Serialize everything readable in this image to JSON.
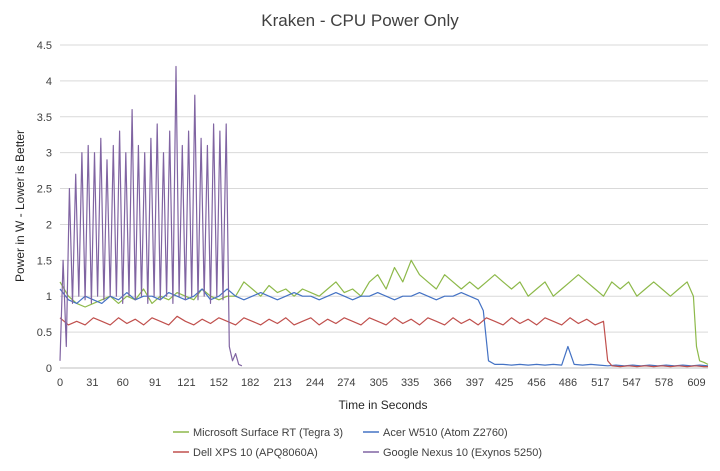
{
  "chart_data": {
    "type": "line",
    "title": "Kraken - CPU Power Only",
    "xlabel": "Time in Seconds",
    "ylabel": "Power in W - Lower is Better",
    "xlim": [
      0,
      620
    ],
    "ylim": [
      0,
      4.5
    ],
    "y_ticks": [
      "0",
      "0.5",
      "1",
      "1.5",
      "2",
      "2.5",
      "3",
      "3.5",
      "4",
      "4.5"
    ],
    "x_ticks": [
      0,
      31,
      60,
      91,
      121,
      152,
      182,
      213,
      244,
      274,
      305,
      335,
      366,
      397,
      425,
      456,
      486,
      517,
      547,
      578,
      609
    ],
    "grid": true,
    "legend_position": "bottom",
    "series": [
      {
        "name": "Microsoft Surface RT (Tegra 3)",
        "color": "#8DB94A",
        "x": [
          0,
          8,
          16,
          24,
          32,
          40,
          48,
          56,
          64,
          72,
          80,
          88,
          96,
          104,
          112,
          120,
          128,
          136,
          144,
          152,
          160,
          168,
          176,
          184,
          192,
          200,
          208,
          216,
          224,
          232,
          240,
          248,
          256,
          264,
          272,
          280,
          288,
          296,
          304,
          312,
          320,
          328,
          336,
          344,
          352,
          360,
          368,
          376,
          384,
          392,
          400,
          408,
          416,
          424,
          432,
          440,
          448,
          456,
          464,
          472,
          480,
          488,
          496,
          504,
          512,
          520,
          528,
          536,
          544,
          552,
          560,
          568,
          576,
          584,
          592,
          600,
          606,
          609,
          612,
          616,
          620
        ],
        "y": [
          1.2,
          1.0,
          0.9,
          0.85,
          0.9,
          0.95,
          1.0,
          0.9,
          1.0,
          0.95,
          1.1,
          0.9,
          1.0,
          0.95,
          1.05,
          1.0,
          0.95,
          1.1,
          1.0,
          0.95,
          1.0,
          1.0,
          1.2,
          1.1,
          1.0,
          1.15,
          1.05,
          1.1,
          1.0,
          1.1,
          1.05,
          1.0,
          1.1,
          1.2,
          1.05,
          1.1,
          1.0,
          1.2,
          1.3,
          1.1,
          1.4,
          1.2,
          1.5,
          1.3,
          1.2,
          1.1,
          1.3,
          1.2,
          1.1,
          1.2,
          1.1,
          1.2,
          1.3,
          1.2,
          1.1,
          1.2,
          1.0,
          1.1,
          1.2,
          1.0,
          1.1,
          1.2,
          1.3,
          1.2,
          1.1,
          1.0,
          1.2,
          1.1,
          1.2,
          1.0,
          1.1,
          1.2,
          1.1,
          1.0,
          1.1,
          1.2,
          1.0,
          0.3,
          0.1,
          0.08,
          0.05
        ]
      },
      {
        "name": "Acer W510 (Atom Z2760)",
        "color": "#4472C4",
        "x": [
          0,
          8,
          16,
          24,
          32,
          40,
          48,
          56,
          64,
          72,
          80,
          88,
          96,
          104,
          112,
          120,
          128,
          136,
          144,
          152,
          160,
          168,
          176,
          184,
          192,
          200,
          208,
          216,
          224,
          232,
          240,
          248,
          256,
          264,
          272,
          280,
          288,
          296,
          304,
          312,
          320,
          328,
          336,
          344,
          352,
          360,
          368,
          376,
          384,
          392,
          400,
          405,
          410,
          416,
          424,
          432,
          440,
          448,
          456,
          464,
          472,
          480,
          486,
          492,
          500,
          508,
          516,
          524,
          532,
          540,
          548,
          556,
          564,
          572,
          580,
          588,
          596,
          604,
          612,
          620
        ],
        "y": [
          1.1,
          0.95,
          0.9,
          1.0,
          0.95,
          0.9,
          1.0,
          0.95,
          1.05,
          0.95,
          1.0,
          1.0,
          0.95,
          1.05,
          1.0,
          0.95,
          1.0,
          1.1,
          0.95,
          1.0,
          1.1,
          1.0,
          0.95,
          1.0,
          1.05,
          1.0,
          0.95,
          1.0,
          1.05,
          1.0,
          1.0,
          0.95,
          1.0,
          1.05,
          1.0,
          0.95,
          1.0,
          1.0,
          1.05,
          1.0,
          0.95,
          1.0,
          1.0,
          1.05,
          1.0,
          0.95,
          1.0,
          1.0,
          1.05,
          1.0,
          0.95,
          0.8,
          0.1,
          0.05,
          0.05,
          0.04,
          0.05,
          0.04,
          0.05,
          0.04,
          0.05,
          0.04,
          0.3,
          0.05,
          0.04,
          0.05,
          0.04,
          0.03,
          0.04,
          0.03,
          0.04,
          0.03,
          0.04,
          0.03,
          0.04,
          0.03,
          0.04,
          0.03,
          0.04,
          0.03
        ]
      },
      {
        "name": "Dell XPS 10 (APQ8060A)",
        "color": "#C0504D",
        "x": [
          0,
          8,
          16,
          24,
          32,
          40,
          48,
          56,
          64,
          72,
          80,
          88,
          96,
          104,
          112,
          120,
          128,
          136,
          144,
          152,
          160,
          168,
          176,
          184,
          192,
          200,
          208,
          216,
          224,
          232,
          240,
          248,
          256,
          264,
          272,
          280,
          288,
          296,
          304,
          312,
          320,
          328,
          336,
          344,
          352,
          360,
          368,
          376,
          384,
          392,
          400,
          408,
          416,
          424,
          432,
          440,
          448,
          456,
          464,
          472,
          480,
          488,
          496,
          504,
          512,
          520,
          524,
          528,
          536,
          544,
          552,
          560,
          568,
          576,
          584,
          592,
          600,
          608,
          616,
          620
        ],
        "y": [
          0.7,
          0.6,
          0.65,
          0.6,
          0.7,
          0.65,
          0.6,
          0.7,
          0.62,
          0.68,
          0.6,
          0.7,
          0.65,
          0.6,
          0.72,
          0.65,
          0.6,
          0.68,
          0.62,
          0.7,
          0.65,
          0.6,
          0.7,
          0.65,
          0.6,
          0.68,
          0.62,
          0.7,
          0.6,
          0.65,
          0.7,
          0.6,
          0.68,
          0.62,
          0.7,
          0.65,
          0.6,
          0.7,
          0.65,
          0.6,
          0.7,
          0.62,
          0.68,
          0.6,
          0.7,
          0.65,
          0.6,
          0.7,
          0.62,
          0.68,
          0.6,
          0.7,
          0.65,
          0.6,
          0.7,
          0.62,
          0.68,
          0.6,
          0.7,
          0.65,
          0.6,
          0.7,
          0.62,
          0.68,
          0.6,
          0.65,
          0.1,
          0.03,
          0.02,
          0.03,
          0.02,
          0.03,
          0.02,
          0.03,
          0.02,
          0.03,
          0.02,
          0.03,
          0.02,
          0.02
        ]
      },
      {
        "name": "Google Nexus 10 (Exynos 5250)",
        "color": "#8064A2",
        "x": [
          0,
          3,
          6,
          9,
          12,
          15,
          18,
          21,
          24,
          27,
          30,
          33,
          36,
          39,
          42,
          45,
          48,
          51,
          54,
          57,
          60,
          63,
          66,
          69,
          72,
          75,
          78,
          81,
          84,
          87,
          90,
          93,
          96,
          99,
          102,
          105,
          108,
          111,
          114,
          117,
          120,
          123,
          126,
          129,
          132,
          135,
          138,
          141,
          144,
          147,
          150,
          153,
          156,
          159,
          162,
          165,
          168,
          171,
          174
        ],
        "y": [
          0.1,
          1.5,
          0.3,
          2.5,
          0.9,
          2.7,
          1.0,
          3.0,
          0.95,
          3.1,
          0.9,
          3.0,
          1.0,
          3.2,
          0.95,
          2.9,
          1.0,
          3.1,
          1.0,
          3.3,
          0.9,
          3.0,
          1.0,
          3.6,
          0.95,
          3.1,
          1.0,
          3.0,
          0.9,
          3.2,
          1.0,
          3.4,
          0.95,
          3.0,
          1.0,
          3.3,
          0.9,
          4.2,
          1.0,
          3.1,
          0.95,
          3.3,
          1.0,
          3.8,
          0.95,
          3.2,
          1.0,
          3.1,
          0.9,
          3.4,
          1.0,
          3.3,
          0.95,
          3.4,
          0.3,
          0.1,
          0.2,
          0.05,
          0.03
        ]
      }
    ]
  }
}
